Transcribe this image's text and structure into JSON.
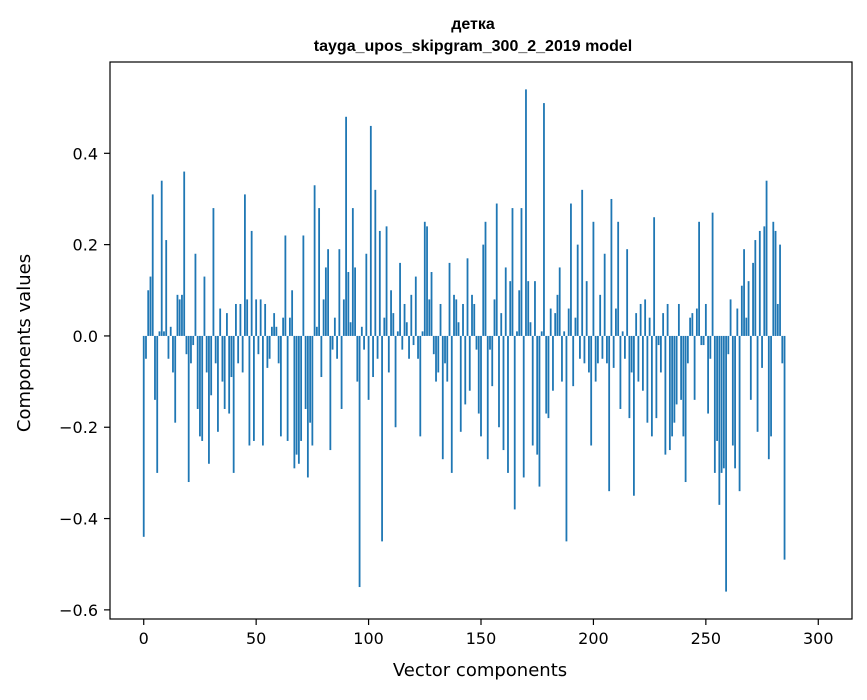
{
  "chart_data": {
    "type": "bar",
    "title_line1": "детка",
    "title_line2": "tayga_upos_skipgram_300_2_2019 model",
    "xlabel": "Vector components",
    "ylabel": "Components values",
    "xlim": [
      -15,
      315
    ],
    "ylim": [
      -0.62,
      0.6
    ],
    "x_ticks": [
      0,
      50,
      100,
      150,
      200,
      250,
      300
    ],
    "y_ticks": [
      -0.6,
      -0.4,
      -0.2,
      0.0,
      0.2,
      0.4
    ],
    "x_tick_labels": [
      "0",
      "50",
      "100",
      "150",
      "200",
      "250",
      "300"
    ],
    "y_tick_labels": [
      "−0.6",
      "−0.4",
      "−0.2",
      "0.0",
      "0.2",
      "0.4"
    ],
    "bar_color": "#1f77b4",
    "grid": false,
    "values": [
      -0.44,
      -0.05,
      0.1,
      0.13,
      0.31,
      -0.14,
      -0.3,
      0.01,
      0.34,
      0.01,
      0.21,
      -0.05,
      0.02,
      -0.08,
      -0.19,
      0.09,
      0.08,
      0.09,
      0.36,
      -0.04,
      -0.32,
      -0.06,
      -0.02,
      0.18,
      -0.16,
      -0.22,
      -0.23,
      0.13,
      -0.08,
      -0.28,
      -0.13,
      0.28,
      -0.06,
      -0.21,
      0.06,
      -0.1,
      -0.16,
      0.05,
      -0.17,
      -0.09,
      -0.3,
      0.07,
      -0.06,
      0.07,
      -0.08,
      0.31,
      0.08,
      -0.24,
      0.23,
      -0.23,
      0.08,
      -0.04,
      0.08,
      -0.24,
      0.07,
      -0.07,
      -0.05,
      0.02,
      0.05,
      0.02,
      -0.06,
      -0.22,
      0.04,
      0.22,
      -0.23,
      0.04,
      0.1,
      -0.29,
      -0.26,
      -0.28,
      -0.23,
      0.22,
      -0.16,
      -0.31,
      -0.19,
      -0.24,
      0.33,
      0.02,
      0.28,
      -0.09,
      0.08,
      0.15,
      0.19,
      -0.25,
      -0.03,
      0.04,
      -0.05,
      0.19,
      -0.16,
      0.08,
      0.48,
      0.14,
      0.03,
      0.28,
      0.15,
      -0.1,
      -0.55,
      0.02,
      -0.03,
      0.18,
      -0.14,
      0.46,
      -0.09,
      0.32,
      -0.05,
      0.23,
      -0.45,
      0.04,
      0.24,
      -0.08,
      0.1,
      0.05,
      -0.2,
      0.01,
      0.16,
      -0.03,
      0.07,
      0.03,
      -0.05,
      0.09,
      -0.02,
      0.13,
      -0.05,
      -0.22,
      0.01,
      0.25,
      0.24,
      0.08,
      0.14,
      -0.04,
      -0.1,
      -0.08,
      0.07,
      -0.27,
      -0.06,
      -0.1,
      0.16,
      -0.3,
      0.09,
      0.08,
      0.03,
      -0.21,
      0.07,
      -0.15,
      0.17,
      -0.12,
      0.09,
      0.07,
      -0.03,
      -0.17,
      -0.22,
      0.2,
      0.25,
      -0.27,
      -0.03,
      -0.11,
      0.08,
      0.29,
      -0.2,
      0.05,
      -0.25,
      0.15,
      -0.3,
      0.12,
      0.28,
      -0.38,
      0.01,
      0.1,
      0.28,
      -0.31,
      0.54,
      0.12,
      0.03,
      -0.24,
      0.12,
      -0.26,
      -0.33,
      0.01,
      0.51,
      -0.17,
      -0.18,
      0.06,
      -0.12,
      0.05,
      0.09,
      0.15,
      -0.1,
      0.01,
      -0.45,
      0.06,
      0.29,
      -0.11,
      0.04,
      0.2,
      -0.05,
      0.32,
      -0.06,
      0.12,
      -0.08,
      -0.24,
      0.25,
      -0.1,
      -0.06,
      0.09,
      -0.05,
      0.18,
      -0.06,
      -0.34,
      0.3,
      -0.07,
      0.06,
      0.25,
      -0.16,
      0.01,
      -0.05,
      0.19,
      -0.18,
      -0.08,
      -0.35,
      0.05,
      -0.1,
      0.07,
      -0.12,
      0.08,
      -0.19,
      0.04,
      -0.22,
      0.26,
      -0.18,
      -0.02,
      -0.08,
      0.05,
      -0.26,
      0.07,
      -0.25,
      -0.22,
      -0.19,
      -0.15,
      0.07,
      -0.14,
      -0.22,
      -0.32,
      -0.06,
      0.04,
      0.05,
      -0.14,
      0.06,
      0.25,
      -0.02,
      -0.02,
      0.07,
      -0.17,
      -0.05,
      0.27,
      -0.3,
      -0.23,
      -0.37,
      -0.3,
      -0.29,
      -0.56,
      -0.04,
      0.08,
      -0.24,
      -0.29,
      0.06,
      -0.34,
      0.11,
      0.19,
      0.04,
      0.12,
      -0.14,
      0.16,
      0.21,
      -0.21,
      0.23,
      -0.07,
      0.24,
      0.34,
      -0.27,
      -0.22,
      0.25,
      0.23,
      0.07,
      0.2,
      -0.06,
      -0.49
    ]
  }
}
